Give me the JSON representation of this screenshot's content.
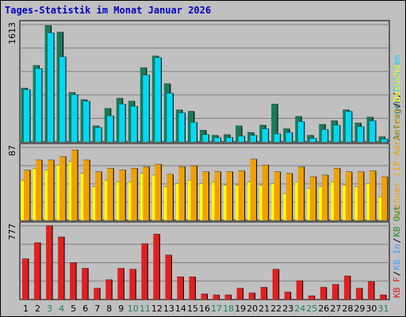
{
  "title": "Tages-Statistik im Monat Januar 2026",
  "colors": {
    "background": "#c0c0c0",
    "title": "#0000c0",
    "grid": "#808080",
    "anfragen": "#1a7a5a",
    "dateien": "#00d8f8",
    "rechner": "#f0a000",
    "besuche": "#ffff00",
    "kb_in": "#40a0ff",
    "kb_out": "#209020",
    "kb_f": "#e02020",
    "weekend_label": "#208060",
    "weekday_label": "#000000"
  },
  "chart_data": [
    {
      "type": "bar",
      "panel": "anfragen-dateien",
      "y_max_label": "1613",
      "ylim": [
        0,
        1613
      ],
      "legend": [
        "Anfragen",
        "/",
        "Dateien"
      ],
      "categories": [
        "1",
        "2",
        "3",
        "4",
        "5",
        "6",
        "7",
        "8",
        "9",
        "10",
        "11",
        "12",
        "13",
        "14",
        "15",
        "16",
        "17",
        "18",
        "19",
        "20",
        "21",
        "22",
        "23",
        "24",
        "25",
        "26",
        "27",
        "28",
        "29",
        "30",
        "31"
      ],
      "series": [
        {
          "name": "Anfragen",
          "values": [
            740,
            1050,
            1600,
            1510,
            680,
            580,
            220,
            460,
            600,
            560,
            1020,
            1180,
            800,
            440,
            420,
            160,
            90,
            100,
            220,
            130,
            230,
            520,
            180,
            350,
            90,
            240,
            290,
            440,
            260,
            340,
            70
          ]
        },
        {
          "name": "Dateien",
          "values": [
            720,
            1010,
            1500,
            1170,
            650,
            560,
            200,
            360,
            520,
            490,
            920,
            1160,
            670,
            400,
            270,
            100,
            60,
            60,
            80,
            90,
            180,
            110,
            130,
            280,
            50,
            170,
            230,
            420,
            210,
            290,
            40
          ]
        }
      ],
      "weekend_days": [
        "3",
        "4",
        "10",
        "11",
        "17",
        "18",
        "24",
        "25",
        "31"
      ]
    },
    {
      "type": "bar",
      "panel": "rechner-besuche",
      "y_max_label": "87",
      "ylim": [
        0,
        87
      ],
      "legend": [
        "Rechner (IP-Adressen)",
        "/",
        "Besuche"
      ],
      "series": [
        {
          "name": "Rechner (IP-Adressen)",
          "values": [
            60,
            72,
            72,
            76,
            84,
            72,
            58,
            62,
            60,
            62,
            64,
            67,
            55,
            64,
            65,
            58,
            58,
            58,
            59,
            73,
            66,
            58,
            56,
            64,
            52,
            54,
            62,
            58,
            58,
            59,
            52
          ]
        },
        {
          "name": "Besuche",
          "values": [
            48,
            62,
            60,
            66,
            70,
            56,
            40,
            48,
            46,
            46,
            56,
            54,
            40,
            44,
            48,
            44,
            46,
            42,
            42,
            46,
            42,
            44,
            32,
            46,
            38,
            40,
            46,
            42,
            40,
            44,
            28
          ]
        }
      ]
    },
    {
      "type": "bar",
      "panel": "kb",
      "y_max_label": "777",
      "ylim": [
        0,
        777
      ],
      "legend": [
        "KB F",
        "/",
        "KB In",
        "/",
        "KB Out"
      ],
      "series": [
        {
          "name": "KB F",
          "values": [
            430,
            600,
            780,
            660,
            390,
            330,
            120,
            210,
            330,
            320,
            590,
            690,
            470,
            240,
            240,
            60,
            50,
            50,
            120,
            70,
            130,
            320,
            80,
            200,
            40,
            130,
            160,
            250,
            120,
            190,
            50
          ]
        }
      ]
    }
  ]
}
